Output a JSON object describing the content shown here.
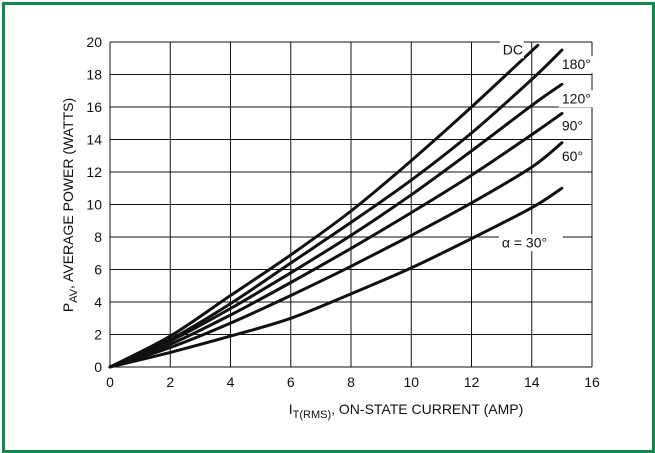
{
  "colors": {
    "border": "#0f8a4a",
    "line": "#111111",
    "background": "#ffffff"
  },
  "chart_data": {
    "type": "line",
    "title": "",
    "xlabel": {
      "main": "I",
      "sub": "T(RMS)",
      "rest": ", ON-STATE CURRENT (AMP)"
    },
    "ylabel": {
      "main": "P",
      "sub": "AV",
      "rest": ", AVERAGE POWER (WATTS)"
    },
    "xlim": [
      0,
      16
    ],
    "ylim": [
      0,
      20
    ],
    "xticks": [
      0,
      2,
      4,
      6,
      8,
      10,
      12,
      14,
      16
    ],
    "yticks": [
      0,
      2,
      4,
      6,
      8,
      10,
      12,
      14,
      16,
      18,
      20
    ],
    "grid": true,
    "series": [
      {
        "name": "DC",
        "x": [
          0,
          2,
          4,
          6,
          8,
          10,
          12,
          14.2
        ],
        "y": [
          0,
          1.9,
          4.4,
          6.9,
          9.6,
          12.7,
          16.0,
          19.8
        ]
      },
      {
        "name": "180°",
        "x": [
          0,
          2,
          4,
          6,
          8,
          10,
          12,
          14,
          15
        ],
        "y": [
          0,
          1.7,
          3.9,
          6.4,
          8.9,
          11.5,
          14.4,
          17.7,
          19.5
        ]
      },
      {
        "name": "120°",
        "x": [
          0,
          2,
          4,
          6,
          8,
          10,
          12,
          14,
          15
        ],
        "y": [
          0,
          1.6,
          3.6,
          5.8,
          8.1,
          10.6,
          13.3,
          16.1,
          17.4
        ]
      },
      {
        "name": "90°",
        "x": [
          0,
          2,
          4,
          6,
          8,
          10,
          12,
          14,
          15
        ],
        "y": [
          0,
          1.4,
          3.2,
          5.2,
          7.3,
          9.5,
          11.8,
          14.3,
          15.6
        ]
      },
      {
        "name": "60°",
        "x": [
          0,
          2,
          4,
          6,
          8,
          10,
          12,
          14,
          15
        ],
        "y": [
          0,
          1.2,
          2.7,
          4.4,
          6.2,
          8.1,
          10.1,
          12.3,
          13.8
        ]
      },
      {
        "name": "α = 30°",
        "x": [
          0,
          2,
          4,
          6,
          8,
          10,
          12,
          14,
          15
        ],
        "y": [
          0,
          0.9,
          1.9,
          3.0,
          4.5,
          6.1,
          7.9,
          9.8,
          11.0
        ]
      }
    ]
  }
}
